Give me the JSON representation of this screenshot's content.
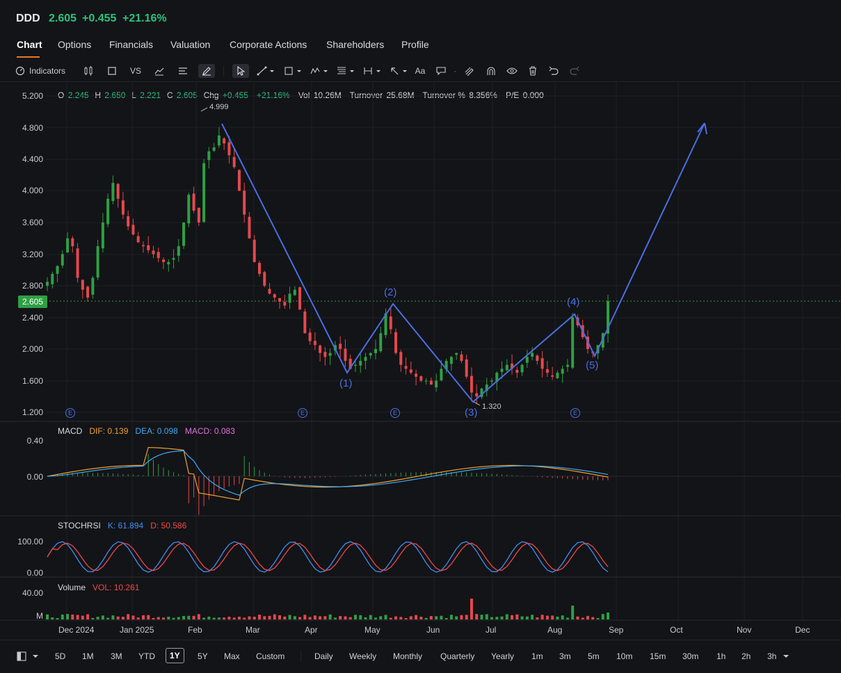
{
  "header": {
    "ticker": "DDD",
    "price": "2.605",
    "change": "+0.455",
    "change_pct": "+21.16%"
  },
  "tabs": [
    {
      "label": "Chart",
      "active": true
    },
    {
      "label": "Options"
    },
    {
      "label": "Financials"
    },
    {
      "label": "Valuation"
    },
    {
      "label": "Corporate Actions"
    },
    {
      "label": "Shareholders"
    },
    {
      "label": "Profile"
    }
  ],
  "toolbar": {
    "indicators_label": "Indicators",
    "vs_label": "VS",
    "text_tool_label": "Aa"
  },
  "ohlc": {
    "o_label": "O",
    "o": "2.245",
    "h_label": "H",
    "h": "2.650",
    "l_label": "L",
    "l": "2.221",
    "c_label": "C",
    "c": "2.605",
    "chg_label": "Chg",
    "chg": "+0.455",
    "chg_pct": "+21.16%",
    "vol_label": "Vol",
    "vol": "10.26M",
    "turnover_label": "Turnover",
    "turnover": "25.68M",
    "turnover_pct_label": "Turnover %",
    "turnover_pct": "8.356%",
    "pe_label": "P/E",
    "pe": "0.000"
  },
  "price_axis": [
    "5.200",
    "4.800",
    "4.400",
    "4.000",
    "3.600",
    "3.200",
    "2.800",
    "2.400",
    "2.000",
    "1.600",
    "1.200"
  ],
  "current_price_tag": "2.605",
  "annotations": {
    "high_label": "4.999",
    "low_label": "1.320",
    "waves": [
      "(1)",
      "(2)",
      "(3)",
      "(4)",
      "(5)"
    ],
    "earnings_marker": "E"
  },
  "macd": {
    "title": "MACD",
    "dif_label": "DIF:",
    "dif": "0.139",
    "dea_label": "DEA:",
    "dea": "0.098",
    "macd_label": "MACD:",
    "macd": "0.083",
    "axis": [
      "0.40",
      "0.00"
    ]
  },
  "stochrsi": {
    "title": "STOCHRSI",
    "k_label": "K:",
    "k": "61.894",
    "d_label": "D:",
    "d": "50.586",
    "axis": [
      "100.00",
      "0.00"
    ]
  },
  "volume": {
    "title": "Volume",
    "vol_label": "VOL:",
    "vol": "10.261",
    "axis": [
      "40.00",
      "M"
    ]
  },
  "time_axis": [
    "Dec 2024",
    "Jan 2025",
    "Feb",
    "Mar",
    "Apr",
    "May",
    "Jun",
    "Jul",
    "Aug",
    "Sep",
    "Oct",
    "Nov",
    "Dec"
  ],
  "range_buttons": [
    "5D",
    "1M",
    "3M",
    "YTD",
    "1Y",
    "5Y",
    "Max",
    "Custom"
  ],
  "active_range": "1Y",
  "interval_buttons": [
    "Daily",
    "Weekly",
    "Monthly",
    "Quarterly",
    "Yearly",
    "1m",
    "3m",
    "5m",
    "10m",
    "15m",
    "30m",
    "1h",
    "2h",
    "3h"
  ],
  "colors": {
    "up": "#2ea043",
    "down": "#e5484d",
    "drawing": "#4a6fe3",
    "dif": "#f0a030",
    "dea": "#3fa9f5",
    "k_line": "#3f8ef5",
    "d_line": "#f04848",
    "accent": "#e8772e"
  },
  "chart_data": {
    "type": "candlestick",
    "title": "",
    "ylim": [
      1.2,
      5.2
    ],
    "key_points": [
      {
        "x": "Feb",
        "y": 4.999,
        "label": "4.999"
      },
      {
        "x": "Jun",
        "y": 1.32,
        "label": "1.320"
      }
    ],
    "close": [
      2.85,
      2.95,
      3.05,
      3.2,
      3.4,
      3.3,
      2.9,
      2.75,
      2.65,
      2.9,
      3.3,
      3.6,
      3.9,
      4.1,
      3.9,
      3.7,
      3.55,
      3.45,
      3.35,
      3.3,
      3.25,
      3.2,
      3.15,
      3.1,
      3.1,
      3.15,
      3.3,
      3.6,
      3.95,
      3.75,
      3.6,
      4.35,
      4.5,
      4.55,
      4.7,
      4.6,
      4.45,
      4.3,
      4.0,
      3.7,
      3.4,
      3.1,
      2.95,
      2.8,
      2.7,
      2.65,
      2.6,
      2.55,
      2.7,
      2.75,
      2.5,
      2.2,
      2.1,
      2.05,
      1.95,
      1.9,
      1.95,
      2.05,
      2.0,
      1.85,
      1.75,
      1.8,
      1.85,
      1.9,
      1.95,
      2.0,
      2.2,
      2.45,
      2.25,
      1.95,
      1.8,
      1.75,
      1.7,
      1.65,
      1.6,
      1.6,
      1.55,
      1.6,
      1.75,
      1.85,
      1.9,
      1.95,
      1.85,
      1.65,
      1.45,
      1.4,
      1.5,
      1.55,
      1.6,
      1.7,
      1.75,
      1.8,
      1.75,
      1.7,
      1.8,
      1.9,
      1.95,
      1.85,
      1.75,
      1.7,
      1.65,
      1.7,
      1.75,
      1.8,
      2.4,
      2.3,
      2.15,
      2.0,
      1.95,
      2.05,
      2.2,
      2.605
    ],
    "wave_points": [
      {
        "label": "(1)",
        "y": 1.7
      },
      {
        "label": "(2)",
        "y": 2.56
      },
      {
        "label": "(3)",
        "y": 1.32
      },
      {
        "label": "(4)",
        "y": 2.45
      },
      {
        "label": "(5)",
        "y": 1.92
      }
    ]
  }
}
